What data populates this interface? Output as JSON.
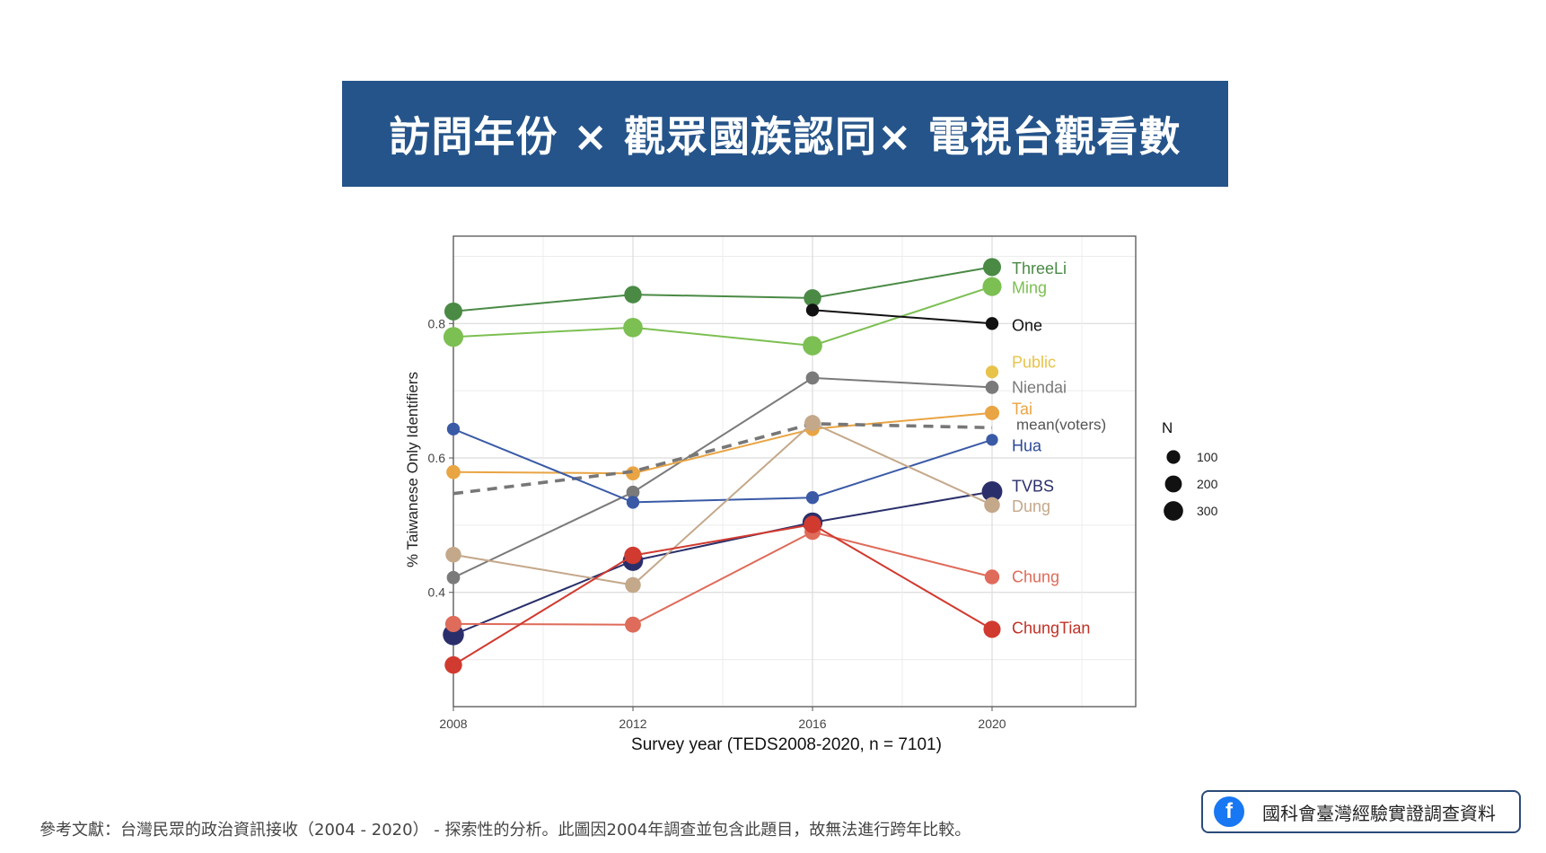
{
  "title": "訪問年份 × 觀眾國族認同× 電視台觀看數",
  "reference_note": "參考文獻：台灣民眾的政治資訊接收（2004 - 2020） - 探索性的分析。此圖因2004年調查並包含此題目，故無法進行跨年比較。",
  "badge": {
    "icon": "facebook-icon",
    "icon_glyph": "f",
    "label": "國科會臺灣經驗實證調查資料"
  },
  "chart_data": {
    "type": "line",
    "title": "",
    "xlabel": "Survey year (TEDS2008-2020, n = 7101)",
    "ylabel": "% Taiwanese Only Identifiers",
    "x": [
      2008,
      2012,
      2016,
      2020
    ],
    "xticks": [
      "2008",
      "2012",
      "2016",
      "2020"
    ],
    "xlim": [
      2008,
      2023.2
    ],
    "ylim": [
      0.23,
      0.93
    ],
    "yticks": [
      0.4,
      0.6,
      0.8
    ],
    "ytick_labels": [
      "0.4",
      "0.6",
      "0.8"
    ],
    "grid": true,
    "legend": {
      "title": "N",
      "placement": "right",
      "sizes": [
        100,
        200,
        300
      ],
      "labels": [
        "100",
        "200",
        "300"
      ]
    },
    "series": [
      {
        "name": "ThreeLi",
        "color": "#4a8a45",
        "values": [
          0.818,
          0.843,
          0.838,
          0.884
        ],
        "sizes": [
          240,
          220,
          220,
          240
        ],
        "dashed": false
      },
      {
        "name": "Ming",
        "color": "#7cbf52",
        "values": [
          0.78,
          0.794,
          0.767,
          0.855
        ],
        "sizes": [
          320,
          300,
          300,
          280
        ],
        "dashed": false
      },
      {
        "name": "One",
        "color": "#111111",
        "values": [
          null,
          null,
          0.82,
          0.8
        ],
        "sizes": [
          null,
          null,
          80,
          80
        ],
        "dashed": false
      },
      {
        "name": "Public",
        "color": "#e8c34a",
        "values": [
          null,
          null,
          null,
          0.728
        ],
        "sizes": [
          null,
          null,
          null,
          80
        ],
        "dashed": false
      },
      {
        "name": "Niendai",
        "color": "#7a7a7a",
        "values": [
          0.422,
          0.549,
          0.719,
          0.705
        ],
        "sizes": [
          90,
          90,
          90,
          90
        ],
        "dashed": false
      },
      {
        "name": "Tai",
        "color": "#e9a443",
        "values": [
          0.579,
          0.577,
          0.643,
          0.667
        ],
        "sizes": [
          110,
          110,
          110,
          120
        ],
        "dashed": false
      },
      {
        "name": "mean(voters)",
        "color": "#777777",
        "values": [
          0.547,
          0.58,
          0.651,
          0.645
        ],
        "sizes": [
          null,
          null,
          null,
          null
        ],
        "dashed": true
      },
      {
        "name": "Hua",
        "color": "#3a5aa6",
        "values": [
          0.643,
          0.534,
          0.541,
          0.627
        ],
        "sizes": [
          80,
          80,
          80,
          60
        ],
        "dashed": false
      },
      {
        "name": "TVBS",
        "color": "#2a2f6b",
        "values": [
          0.337,
          0.447,
          0.504,
          0.55
        ],
        "sizes": [
          380,
          340,
          330,
          350
        ],
        "dashed": false
      },
      {
        "name": "Dung",
        "color": "#c4a88a",
        "values": [
          0.456,
          0.411,
          0.652,
          0.53
        ],
        "sizes": [
          160,
          160,
          170,
          160
        ],
        "dashed": false
      },
      {
        "name": "Chung",
        "color": "#df6b5a",
        "values": [
          0.353,
          0.352,
          0.49,
          0.423
        ],
        "sizes": [
          180,
          170,
          170,
          130
        ],
        "dashed": false
      },
      {
        "name": "ChungTian",
        "color": "#d13a2f",
        "values": [
          0.292,
          0.455,
          0.501,
          0.345
        ],
        "sizes": [
          220,
          220,
          220,
          210
        ],
        "dashed": false
      }
    ],
    "series_labels": [
      {
        "name": "ThreeLi",
        "color": "#4a8a45",
        "anchor_y": 0.882
      },
      {
        "name": "Ming",
        "color": "#7cbf52",
        "anchor_y": 0.853
      },
      {
        "name": "One",
        "color": "#111111",
        "anchor_y": 0.797
      },
      {
        "name": "Public",
        "color": "#e8c34a",
        "anchor_y": 0.742
      },
      {
        "name": "Niendai",
        "color": "#7a7a7a",
        "anchor_y": 0.705
      },
      {
        "name": "Tai",
        "color": "#e9a443",
        "anchor_y": 0.673
      },
      {
        "name": "mean(voters)",
        "color": "#555555",
        "anchor_y": 0.65
      },
      {
        "name": "Hua",
        "color": "#2d4a96",
        "anchor_y": 0.618
      },
      {
        "name": "TVBS",
        "color": "#2a2f6b",
        "anchor_y": 0.558
      },
      {
        "name": "Dung",
        "color": "#c4a88a",
        "anchor_y": 0.528
      },
      {
        "name": "Chung",
        "color": "#df6b5a",
        "anchor_y": 0.423
      },
      {
        "name": "ChungTian",
        "color": "#c23126",
        "anchor_y": 0.347
      }
    ]
  }
}
